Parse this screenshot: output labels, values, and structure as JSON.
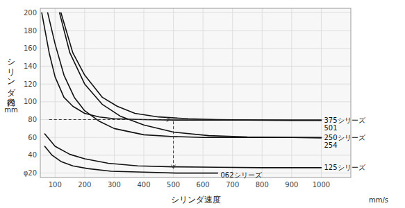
{
  "chart_data": {
    "type": "line",
    "ylabel": "シリンダ内径",
    "ylabel_unit": "mm",
    "xlabel": "シリンダ速度",
    "xlabel_unit": "mm/s",
    "xlim": [
      50,
      1100
    ],
    "ylim": [
      15,
      205
    ],
    "xticks": [
      100,
      200,
      300,
      400,
      500,
      600,
      700,
      800,
      900,
      1000
    ],
    "yticks": [
      {
        "value": 20,
        "label": "φ20"
      },
      40,
      60,
      80,
      100,
      120,
      140,
      160,
      180,
      200
    ],
    "grid": true,
    "series": [
      {
        "name": "375シリーズ",
        "color": "#111111",
        "x": [
          55,
          80,
          100,
          130,
          160,
          200,
          250,
          300,
          400,
          500,
          600,
          700,
          800,
          900,
          1000
        ],
        "values": [
          200,
          155,
          128,
          105,
          95,
          87,
          83,
          81,
          80,
          79.5,
          79.5,
          79.5,
          79.5,
          79.5,
          79.5
        ]
      },
      {
        "name": "501",
        "color": "#111111",
        "x": [
          120,
          160,
          200,
          260,
          310,
          370,
          450,
          550,
          650,
          750,
          900,
          1000
        ],
        "values": [
          200,
          155,
          130,
          105,
          95,
          87,
          83,
          81,
          80,
          79.5,
          79,
          79
        ]
      },
      {
        "name": "250シリーズ",
        "color": "#111111",
        "x": [
          75,
          100,
          130,
          165,
          200,
          250,
          300,
          400,
          500,
          600,
          700,
          800,
          900,
          1000
        ],
        "values": [
          200,
          165,
          130,
          105,
          90,
          78,
          70,
          63,
          61,
          60,
          60,
          60,
          60,
          60
        ]
      },
      {
        "name": "254",
        "color": "#111111",
        "x": [
          115,
          150,
          200,
          260,
          320,
          400,
          500,
          620,
          750,
          900,
          1000
        ],
        "values": [
          200,
          155,
          120,
          97,
          84,
          74,
          66,
          62,
          60.5,
          60,
          59.5
        ]
      },
      {
        "name": "125シリーズ",
        "color": "#111111",
        "x": [
          65,
          100,
          150,
          200,
          280,
          380,
          500,
          650,
          800,
          1000
        ],
        "values": [
          64,
          50,
          41,
          36,
          31,
          28,
          27,
          26.5,
          26,
          26
        ]
      },
      {
        "name": "062シリーズ",
        "color": "#111111",
        "x": [
          65,
          90,
          120,
          160,
          210,
          290,
          400,
          510,
          650
        ],
        "values": [
          50,
          40,
          33,
          28,
          25,
          22,
          21,
          20,
          20
        ]
      }
    ],
    "arrows": [
      {
        "x": [
          80,
          490
        ],
        "y": [
          80,
          80
        ]
      },
      {
        "x": [
          500,
          500
        ],
        "y": [
          78,
          25
        ]
      }
    ]
  }
}
